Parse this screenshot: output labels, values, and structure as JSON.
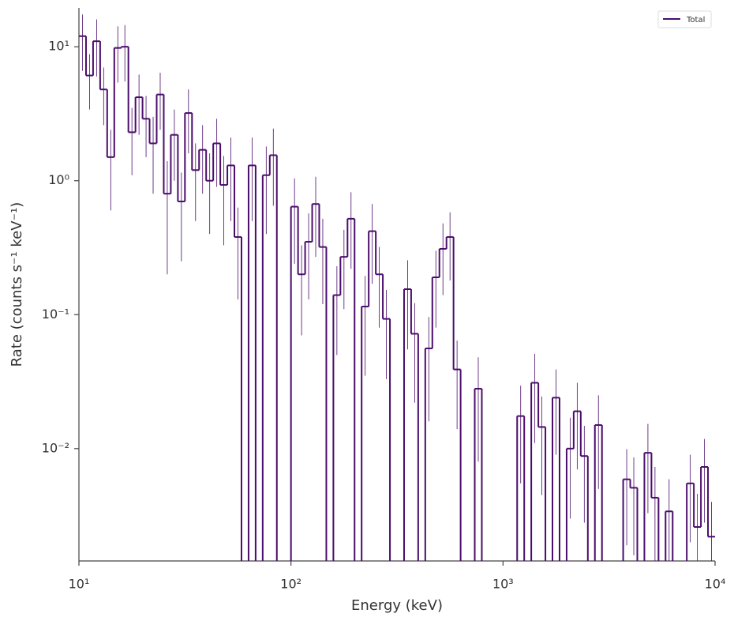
{
  "chart_data": {
    "type": "step-histogram",
    "xlabel": "Energy (keV)",
    "ylabel": "Rate (counts s⁻¹ keV⁻¹)",
    "xscale": "log",
    "yscale": "log",
    "xlim": [
      10,
      10000
    ],
    "ylim": [
      0.00145,
      19.5
    ],
    "xticks": [
      {
        "value": 10,
        "label": "10¹"
      },
      {
        "value": 100,
        "label": "10²"
      },
      {
        "value": 1000,
        "label": "10³"
      },
      {
        "value": 10000,
        "label": "10⁴"
      }
    ],
    "yticks": [
      {
        "value": 0.01,
        "label": "10⁻²"
      },
      {
        "value": 0.1,
        "label": "10⁻¹"
      },
      {
        "value": 1,
        "label": "10⁰"
      },
      {
        "value": 10,
        "label": "10¹"
      }
    ],
    "legend": "upper right",
    "bins": [
      10,
      10.8,
      11.66,
      12.59,
      13.59,
      14.68,
      15.85,
      17.11,
      18.48,
      19.95,
      21.54,
      23.26,
      25.12,
      27.12,
      29.29,
      31.62,
      34.15,
      36.87,
      39.81,
      42.99,
      46.42,
      50.12,
      54.12,
      58.43,
      63.1,
      68.13,
      73.56,
      79.43,
      85.77,
      92.61,
      100,
      108,
      116.6,
      125.9,
      135.9,
      146.8,
      158.5,
      171.1,
      184.8,
      199.5,
      215.4,
      232.6,
      251.2,
      271.2,
      292.9,
      316.2,
      341.5,
      368.7,
      398.1,
      429.9,
      464.2,
      501.2,
      541.2,
      584.3,
      631,
      681.3,
      735.6,
      794.3,
      857.7,
      926.1,
      1000,
      1080,
      1166,
      1259,
      1359,
      1468,
      1585,
      1711,
      1848,
      1995,
      2154,
      2326,
      2512,
      2712,
      2929,
      3162,
      3415,
      3687,
      3981,
      4299,
      4642,
      5012,
      5412,
      5843,
      6310,
      6813,
      7356,
      7943,
      8577,
      9261,
      10000
    ],
    "series": [
      {
        "name": "Total",
        "color": "#4a0c6b",
        "values": [
          12,
          6.1,
          11,
          4.8,
          1.5,
          9.8,
          10,
          2.3,
          4.2,
          2.9,
          1.9,
          4.4,
          0.8,
          2.2,
          0.7,
          3.2,
          1.2,
          1.7,
          1.0,
          1.9,
          0.93,
          1.3,
          0.38,
          null,
          1.3,
          null,
          1.1,
          1.55,
          null,
          null,
          0.64,
          0.2,
          0.35,
          0.67,
          0.32,
          null,
          0.14,
          0.27,
          0.52,
          null,
          0.115,
          0.42,
          0.2,
          0.093,
          null,
          null,
          0.155,
          0.072,
          null,
          0.056,
          0.19,
          0.31,
          0.38,
          0.039,
          null,
          null,
          0.028,
          null,
          null,
          null,
          null,
          null,
          0.0175,
          null,
          0.031,
          0.0145,
          null,
          0.024,
          null,
          0.01,
          0.019,
          0.0088,
          null,
          0.015,
          null,
          null,
          null,
          0.0059,
          0.0051,
          null,
          0.0093,
          0.0043,
          null,
          0.0034,
          null,
          null,
          0.0055,
          0.0026,
          0.0073,
          0.0022
        ],
        "errors": [
          5.4,
          2.7,
          5,
          2.2,
          0.9,
          4.4,
          4.5,
          1.2,
          2,
          1.4,
          1.1,
          2,
          0.6,
          1.2,
          0.45,
          1.6,
          0.7,
          0.9,
          0.6,
          1,
          0.6,
          0.8,
          0.25,
          null,
          0.8,
          null,
          0.7,
          0.9,
          null,
          null,
          0.4,
          0.13,
          0.22,
          0.4,
          0.2,
          null,
          0.09,
          0.16,
          0.3,
          null,
          0.08,
          0.25,
          0.12,
          0.06,
          null,
          null,
          0.1,
          0.05,
          null,
          0.04,
          0.11,
          0.17,
          0.2,
          0.025,
          null,
          null,
          0.02,
          null,
          null,
          null,
          null,
          null,
          0.012,
          null,
          0.02,
          0.01,
          null,
          0.015,
          null,
          0.007,
          0.012,
          0.006,
          null,
          0.01,
          null,
          null,
          null,
          0.004,
          0.0035,
          null,
          0.006,
          0.003,
          null,
          0.0025,
          null,
          null,
          0.0035,
          0.002,
          0.0045,
          0.0018
        ]
      }
    ]
  }
}
